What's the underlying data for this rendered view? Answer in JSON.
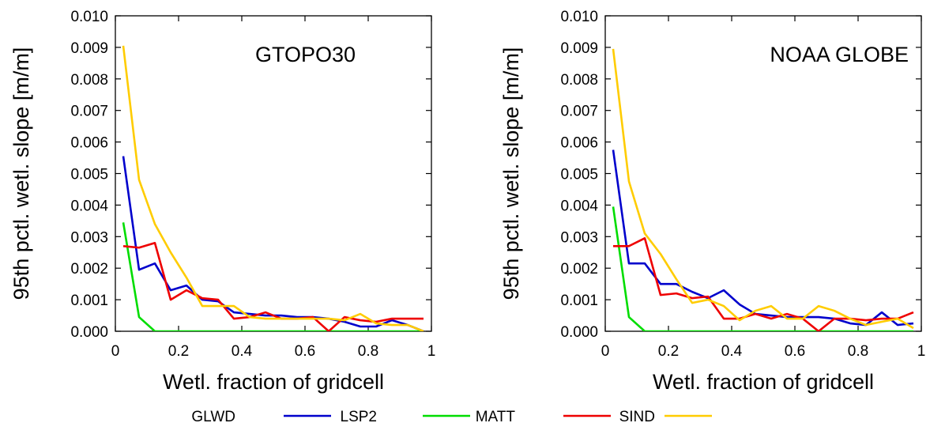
{
  "chart_data": [
    {
      "type": "line",
      "title": "GTOPO30",
      "xlabel": "Wetl. fraction of gridcell",
      "ylabel": "95th pctl. wetl. slope [m/m]",
      "xlim": [
        0,
        1
      ],
      "ylim": [
        0,
        0.01
      ],
      "x_ticks": [
        "0",
        "0.2",
        "0.4",
        "0.6",
        "0.8",
        "1"
      ],
      "y_ticks": [
        "0.000",
        "0.001",
        "0.002",
        "0.003",
        "0.004",
        "0.005",
        "0.006",
        "0.007",
        "0.008",
        "0.009",
        "0.010"
      ],
      "x": [
        0.025,
        0.075,
        0.125,
        0.175,
        0.225,
        0.275,
        0.325,
        0.375,
        0.425,
        0.475,
        0.525,
        0.575,
        0.625,
        0.675,
        0.725,
        0.775,
        0.825,
        0.875,
        0.925,
        0.975
      ],
      "series": [
        {
          "name": "GLWD",
          "color": "#0000cc",
          "values": [
            0.00555,
            0.00195,
            0.00215,
            0.0013,
            0.00145,
            0.001,
            0.00095,
            0.0006,
            0.00055,
            0.0005,
            0.0005,
            0.00045,
            0.00045,
            0.0004,
            0.0003,
            0.00015,
            0.00015,
            0.00035,
            0.0002,
            0.0
          ]
        },
        {
          "name": "LSP2",
          "color": "#00dd00",
          "values": [
            0.00345,
            0.00045,
            0.0,
            0.0,
            0.0,
            0.0,
            0.0,
            0.0,
            0.0,
            0.0,
            0.0,
            0.0,
            0.0,
            0.0,
            0.0,
            0.0,
            0.0,
            0.0,
            0.0,
            0.0
          ]
        },
        {
          "name": "MATT",
          "color": "#ee0000",
          "values": [
            0.0027,
            0.00265,
            0.0028,
            0.001,
            0.0013,
            0.00105,
            0.001,
            0.0004,
            0.00045,
            0.0006,
            0.0004,
            0.0004,
            0.00045,
            0.0,
            0.00045,
            0.00035,
            0.0003,
            0.0004,
            0.0004,
            0.0004
          ]
        },
        {
          "name": "SIND",
          "color": "#ffcc00",
          "values": [
            0.00905,
            0.0048,
            0.0034,
            0.0025,
            0.0017,
            0.0008,
            0.0008,
            0.0008,
            0.00045,
            0.0004,
            0.0004,
            0.0004,
            0.0004,
            0.0004,
            0.00035,
            0.00055,
            0.00025,
            0.0002,
            0.0002,
            0.0
          ]
        }
      ]
    },
    {
      "type": "line",
      "title": "NOAA GLOBE",
      "xlabel": "Wetl. fraction of gridcell",
      "ylabel": "95th pctl. wetl. slope [m/m]",
      "xlim": [
        0,
        1
      ],
      "ylim": [
        0,
        0.01
      ],
      "x_ticks": [
        "0",
        "0.2",
        "0.4",
        "0.6",
        "0.8",
        "1"
      ],
      "y_ticks": [
        "0.000",
        "0.001",
        "0.002",
        "0.003",
        "0.004",
        "0.005",
        "0.006",
        "0.007",
        "0.008",
        "0.009",
        "0.010"
      ],
      "x": [
        0.025,
        0.075,
        0.125,
        0.175,
        0.225,
        0.275,
        0.325,
        0.375,
        0.425,
        0.475,
        0.525,
        0.575,
        0.625,
        0.675,
        0.725,
        0.775,
        0.825,
        0.875,
        0.925,
        0.975
      ],
      "series": [
        {
          "name": "GLWD",
          "color": "#0000cc",
          "values": [
            0.00575,
            0.00215,
            0.00215,
            0.0015,
            0.0015,
            0.00125,
            0.00105,
            0.0013,
            0.00085,
            0.00055,
            0.0005,
            0.00045,
            0.00045,
            0.00045,
            0.0004,
            0.00025,
            0.0002,
            0.0006,
            0.0002,
            0.00025
          ]
        },
        {
          "name": "LSP2",
          "color": "#00dd00",
          "values": [
            0.00395,
            0.00045,
            0.0,
            0.0,
            0.0,
            0.0,
            0.0,
            0.0,
            0.0,
            0.0,
            0.0,
            0.0,
            0.0,
            0.0,
            0.0,
            0.0,
            0.0,
            0.0,
            0.0,
            0.0
          ]
        },
        {
          "name": "MATT",
          "color": "#ee0000",
          "values": [
            0.0027,
            0.0027,
            0.00295,
            0.00115,
            0.0012,
            0.00105,
            0.0011,
            0.0004,
            0.0004,
            0.00055,
            0.0004,
            0.00055,
            0.0004,
            0.0,
            0.0004,
            0.0004,
            0.00035,
            0.0004,
            0.0004,
            0.0006
          ]
        },
        {
          "name": "SIND",
          "color": "#ffcc00",
          "values": [
            0.00895,
            0.00475,
            0.0031,
            0.00245,
            0.00165,
            0.0009,
            0.001,
            0.0008,
            0.00035,
            0.00065,
            0.0008,
            0.0004,
            0.0004,
            0.0008,
            0.00065,
            0.0004,
            0.0002,
            0.0003,
            0.0004,
            0.0001
          ]
        }
      ]
    }
  ],
  "legend": {
    "placement": "bottom",
    "items": [
      {
        "label": "GLWD",
        "color": "#0000cc"
      },
      {
        "label": "LSP2",
        "color": "#00dd00"
      },
      {
        "label": "MATT",
        "color": "#ee0000"
      },
      {
        "label": "SIND",
        "color": "#ffcc00"
      }
    ]
  }
}
